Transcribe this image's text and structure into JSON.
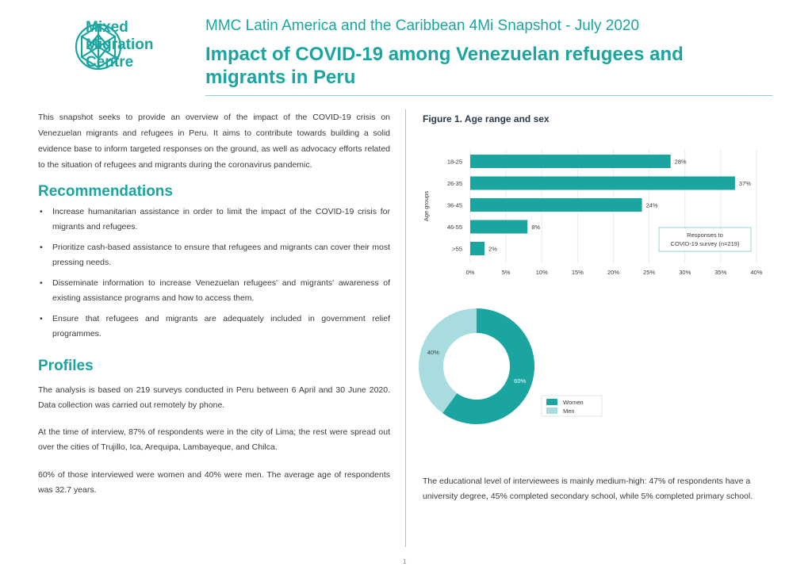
{
  "logo": {
    "line1": "Mixed",
    "line2": "Migration",
    "line3": "Centre",
    "icon": "globe-network-icon"
  },
  "header": {
    "subtitle": "MMC Latin America and the Caribbean 4Mi Snapshot - July 2020",
    "title": "Impact of COVID-19 among Venezuelan refugees and migrants in Peru"
  },
  "intro": "This snapshot seeks to provide an overview of the impact of the COVID-19 crisis on Venezuelan migrants and refugees in Peru. It aims to contribute towards building a solid evidence base to inform targeted responses on the ground, as well as advocacy efforts related to the situation of refugees and migrants during the coronavirus pandemic.",
  "recommendations": {
    "heading": "Recommendations",
    "items": [
      "Increase humanitarian assistance in order to limit the impact of the COVID-19 crisis for migrants and refugees.",
      "Prioritize cash-based assistance to ensure that refugees and migrants can cover their most pressing needs.",
      "Disseminate information to increase Venezuelan refugees' and migrants' awareness of existing assistance programs and how to access them.",
      "Ensure that refugees and migrants are adequately included in government relief programmes."
    ]
  },
  "profiles": {
    "heading": "Profiles",
    "p1": "The analysis is based on 219 surveys conducted in Peru between 6 April and 30 June 2020. Data collection was carried out remotely by phone.",
    "p2": "At the time of interview, 87% of respondents were in the city of Lima; the rest were spread out over the cities of Trujillo, Ica, Arequipa, Lambayeque, and Chilca.",
    "p3": "60% of those interviewed were women and 40% were men. The average age of respondents was 32.7 years."
  },
  "figure": {
    "title": "Figure 1. Age range and sex"
  },
  "education_text": "The educational level of interviewees is mainly medium-high: 47% of respondents have a university degree, 45% completed secondary school, while 5% completed primary school.",
  "page_number": "1",
  "colors": {
    "accent": "#1aa5a0",
    "light": "#a8dcdf",
    "rule": "#8fd3d0"
  },
  "chart_data": [
    {
      "type": "bar",
      "orientation": "horizontal",
      "categories": [
        "18-25",
        "26-35",
        "36-45",
        "46-55",
        ">55"
      ],
      "values": [
        28,
        37,
        24,
        8,
        2
      ],
      "value_labels": [
        "28%",
        "37%",
        "24%",
        "8%",
        "2%"
      ],
      "ylabel": "Age groups",
      "xticks": [
        "0%",
        "5%",
        "10%",
        "15%",
        "20%",
        "25%",
        "30%",
        "35%",
        "40%"
      ],
      "xlim": [
        0,
        40
      ],
      "legend": {
        "line1": "Responses to",
        "line2": "COVID-19 survey (n=219)",
        "placement": "bottom-right"
      },
      "grid": true,
      "color": "#1aa5a0"
    },
    {
      "type": "pie",
      "style": "donut",
      "series": [
        {
          "name": "Women",
          "value": 60,
          "label": "60%",
          "color": "#1aa5a0"
        },
        {
          "name": "Men",
          "value": 40,
          "label": "40%",
          "color": "#a8dcdf"
        }
      ],
      "legend": "right"
    }
  ]
}
